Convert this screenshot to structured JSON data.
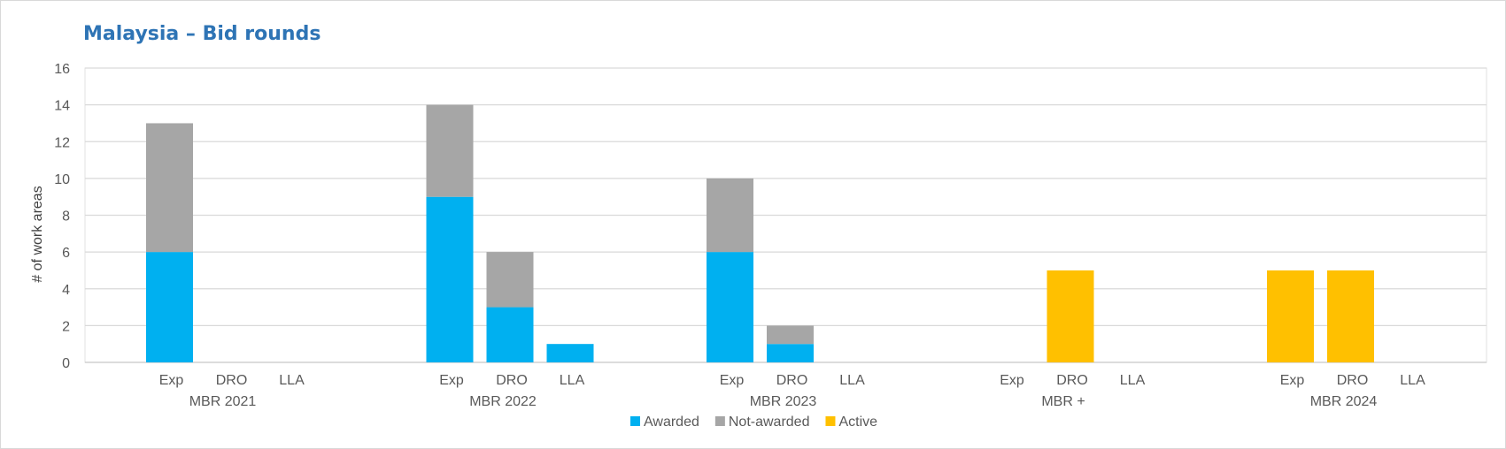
{
  "chart_data": {
    "type": "bar",
    "stacked": true,
    "title": "Malaysia – Bid rounds",
    "ylabel": "# of work areas",
    "xlabel": "",
    "ylim": [
      0,
      16
    ],
    "yticks": [
      0,
      2,
      4,
      6,
      8,
      10,
      12,
      14,
      16
    ],
    "grid": true,
    "legend_position": "bottom",
    "groups": [
      "MBR 2021",
      "MBR 2022",
      "MBR 2023",
      "MBR +",
      "MBR 2024"
    ],
    "subcategories": [
      "Exp",
      "DRO",
      "LLA"
    ],
    "series": [
      {
        "name": "Awarded",
        "color": "#00b0f0",
        "values": [
          [
            6,
            0,
            0
          ],
          [
            9,
            3,
            1
          ],
          [
            6,
            1,
            0
          ],
          [
            0,
            0,
            0
          ],
          [
            0,
            0,
            0
          ]
        ]
      },
      {
        "name": "Not-awarded",
        "color": "#a6a6a6",
        "values": [
          [
            7,
            0,
            0
          ],
          [
            5,
            3,
            0
          ],
          [
            4,
            1,
            0
          ],
          [
            0,
            0,
            0
          ],
          [
            0,
            0,
            0
          ]
        ]
      },
      {
        "name": "Active",
        "color": "#ffc000",
        "values": [
          [
            0,
            0,
            0
          ],
          [
            0,
            0,
            0
          ],
          [
            0,
            0,
            0
          ],
          [
            0,
            5,
            0
          ],
          [
            5,
            5,
            0
          ]
        ]
      }
    ]
  }
}
